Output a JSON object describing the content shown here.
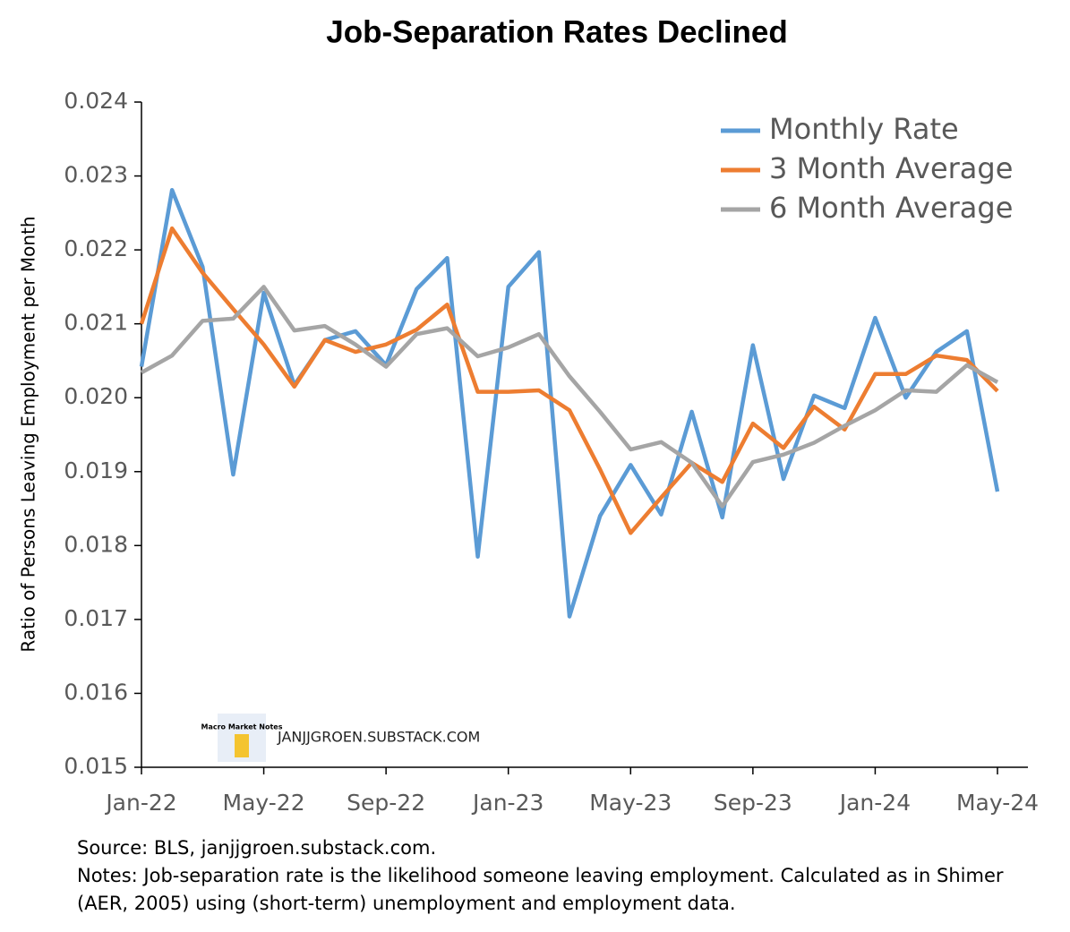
{
  "chart_data": {
    "type": "line",
    "title": "Job-Separation Rates Declined",
    "y_label": "Ratio of Persons Leaving Employment per Month",
    "categories": [
      "Jan-22",
      null,
      null,
      null,
      "May-22",
      null,
      null,
      null,
      "Sep-22",
      null,
      null,
      null,
      "Jan-23",
      null,
      null,
      null,
      "May-23",
      null,
      null,
      null,
      "Sep-23",
      null,
      null,
      null,
      "Jan-24",
      null,
      null,
      null,
      "May-24"
    ],
    "series": [
      {
        "name": "Monthly Rate",
        "color": "#5b9bd5",
        "values": [
          0.02042,
          0.02281,
          0.02177,
          0.01896,
          0.02142,
          0.02017,
          0.02078,
          0.0209,
          0.02044,
          0.02147,
          0.02189,
          0.01785,
          0.0215,
          0.02197,
          0.01704,
          0.0184,
          0.01909,
          0.01842,
          0.01981,
          0.01838,
          0.02071,
          0.0189,
          0.02003,
          0.01986,
          0.02108,
          0.02,
          0.02062,
          0.0209,
          0.01873
        ]
      },
      {
        "name": "3 Month Average",
        "color": "#ed7d31",
        "values": [
          0.021,
          0.02229,
          0.02169,
          0.0212,
          0.02072,
          0.02015,
          0.02078,
          0.02062,
          0.02072,
          0.02092,
          0.02126,
          0.02008,
          0.02008,
          0.0201,
          0.01983,
          0.01903,
          0.01817,
          0.01865,
          0.01912,
          0.01886,
          0.01965,
          0.01932,
          0.01988,
          0.01957,
          0.02032,
          0.02032,
          0.02057,
          0.02051,
          0.02009
        ]
      },
      {
        "name": "6 Month Average",
        "color": "#a5a5a5",
        "values": [
          0.02034,
          0.02057,
          0.02104,
          0.02107,
          0.0215,
          0.02091,
          0.02097,
          0.02072,
          0.02042,
          0.02086,
          0.02094,
          0.02056,
          0.02068,
          0.02086,
          0.02029,
          0.01981,
          0.0193,
          0.0194,
          0.01912,
          0.01853,
          0.01913,
          0.01923,
          0.01939,
          0.01962,
          0.01983,
          0.0201,
          0.02008,
          0.02044,
          0.02021
        ]
      }
    ],
    "ylim": [
      0.015,
      0.024
    ],
    "yticks": [
      0.015,
      0.016,
      0.017,
      0.018,
      0.019,
      {
        "value": 0.02,
        "label": "0.020"
      },
      0.021,
      0.022,
      0.023,
      0.024
    ],
    "grid": false,
    "legend": "upper right",
    "watermark_logo": "Macro Market Notes",
    "watermark": "JANJJGROEN.SUBSTACK.COM",
    "source": "Source: BLS, janjjgroen.substack.com.",
    "notes": "Notes: Job-separation rate is the likelihood someone leaving employment. Calculated as in Shimer (AER, 2005) using (short-term) unemployment and employment data."
  }
}
